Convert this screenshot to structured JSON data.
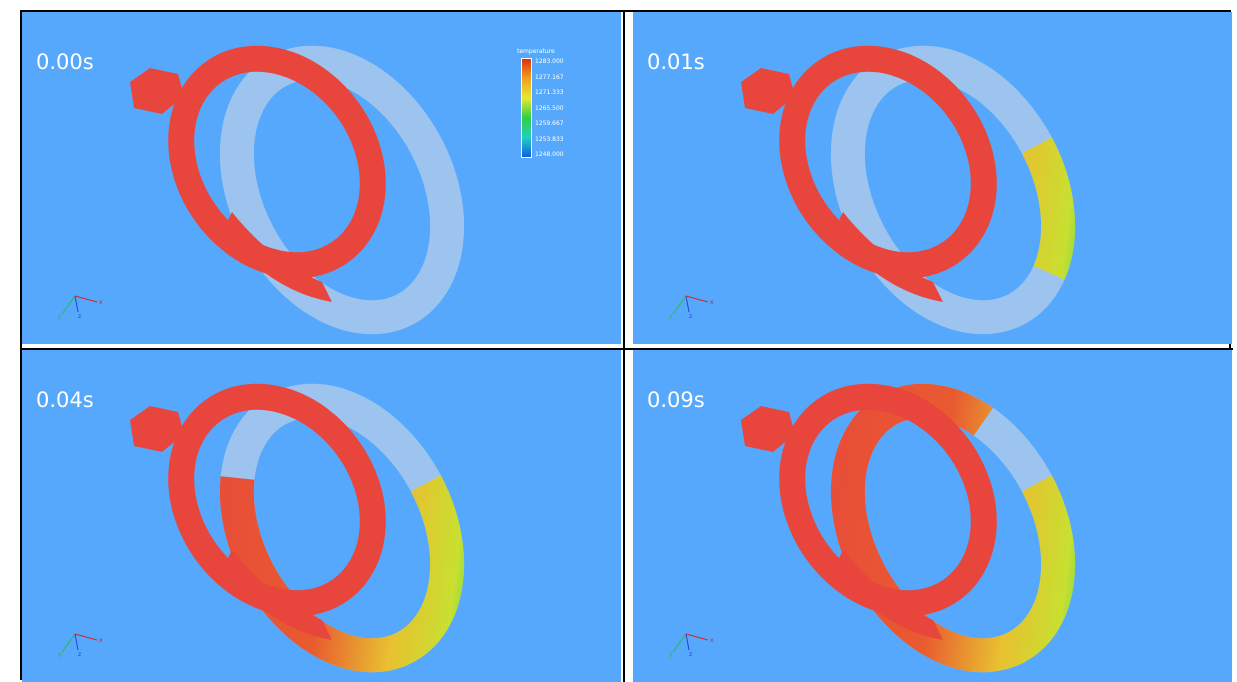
{
  "panels": [
    {
      "time": "0.00s"
    },
    {
      "time": "0.01s"
    },
    {
      "time": "0.04s"
    },
    {
      "time": "0.09s"
    }
  ],
  "legend": {
    "title": "temperature",
    "labels": [
      "1283.000",
      "1277.167",
      "1271.333",
      "1265.500",
      "1259.667",
      "1253.833",
      "1248.000"
    ]
  },
  "axes": [
    "x",
    "y",
    "z"
  ]
}
